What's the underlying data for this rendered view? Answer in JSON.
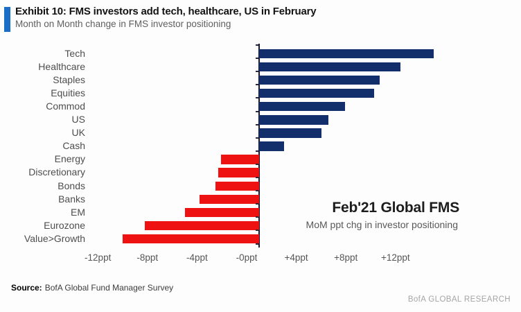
{
  "header": {
    "title": "Exhibit 10: FMS investors add tech, healthcare, US in February",
    "subtitle": "Month on Month change in FMS investor positioning",
    "accent_color": "#1b6ec8"
  },
  "chart_data": {
    "type": "bar",
    "orientation": "horizontal",
    "title": "Month on Month change in FMS investor positioning",
    "categories": [
      "Tech",
      "Healthcare",
      "Staples",
      "Equities",
      "Commod",
      "US",
      "UK",
      "Cash",
      "Energy",
      "Discretionary",
      "Bonds",
      "Banks",
      "EM",
      "Eurozone",
      "Value>Growth"
    ],
    "values": [
      14.1,
      11.4,
      9.7,
      9.3,
      6.9,
      5.6,
      5.0,
      2.0,
      -3.1,
      -3.3,
      -3.5,
      -4.8,
      -6.0,
      -9.2,
      -11.0
    ],
    "unit": "ppt",
    "x_ticks": [
      "-12ppt",
      "-8ppt",
      "-4ppt",
      "-0ppt",
      "+4ppt",
      "+8ppt",
      "+12ppt"
    ],
    "x_tick_values": [
      -12,
      -8,
      -4,
      0,
      4,
      8,
      12
    ],
    "xlim": [
      -14,
      15.5
    ],
    "grid": false,
    "legend": "none",
    "positive_color": "#122f6b",
    "negative_color": "#ee1212",
    "axis_color": "#16163a",
    "annotation_title": "Feb'21 Global FMS",
    "annotation_subtitle": "MoM ppt chg in investor positioning"
  },
  "footer": {
    "source_label": "Source:",
    "source_text": "BofA Global Fund Manager Survey",
    "brand": "BofA GLOBAL RESEARCH"
  }
}
